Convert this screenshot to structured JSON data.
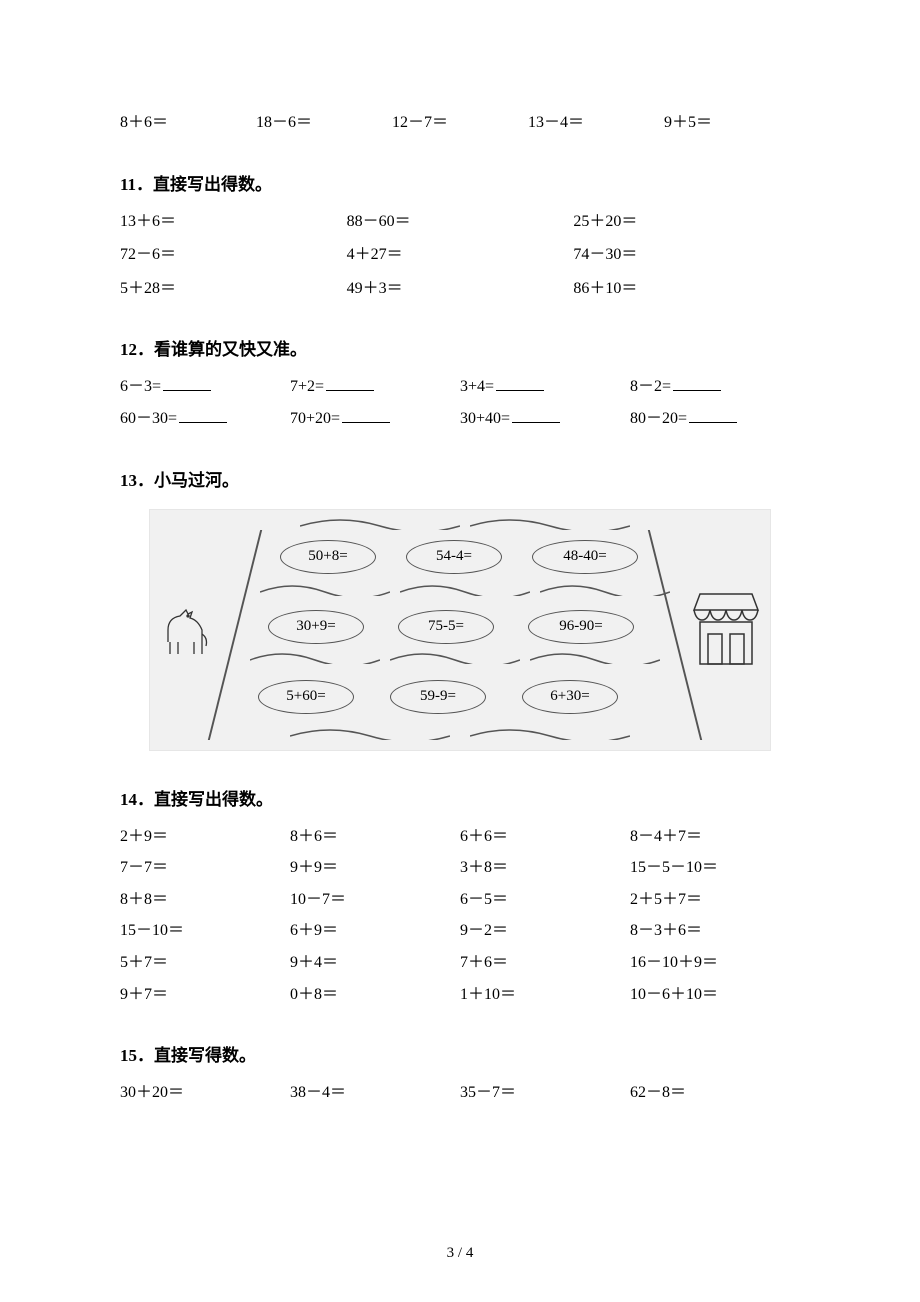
{
  "topRow": {
    "items": [
      "8＋6＝",
      "18－6＝",
      "12－7＝",
      "13－4＝",
      "9＋5＝"
    ]
  },
  "q11": {
    "title": "11．直接写出得数。",
    "rows": [
      [
        "13＋6＝",
        "88－60＝",
        "25＋20＝"
      ],
      [
        "72－6＝",
        "4＋27＝",
        "74－30＝"
      ],
      [
        "5＋28＝",
        "49＋3＝",
        "86＋10＝"
      ]
    ]
  },
  "q12": {
    "title": "12．看谁算的又快又准。",
    "rows": [
      [
        "6－3=",
        "7+2=",
        "3+4=",
        "8－2="
      ],
      [
        "60－30=",
        "70+20=",
        "30+40=",
        "80－20="
      ]
    ]
  },
  "q13": {
    "title": "13．小马过河。",
    "pills": {
      "r1": [
        "50+8=",
        "54-4=",
        "48-40="
      ],
      "r2": [
        "30+9=",
        "75-5=",
        "96-90="
      ],
      "r3": [
        "5+60=",
        "59-9=",
        "6+30="
      ]
    }
  },
  "q14": {
    "title": "14．直接写出得数。",
    "rows": [
      [
        "2＋9＝",
        "8＋6＝",
        "6＋6＝",
        "8－4＋7＝"
      ],
      [
        "7－7＝",
        "9＋9＝",
        "3＋8＝",
        "15－5－10＝"
      ],
      [
        "8＋8＝",
        "10－7＝",
        "6－5＝",
        "2＋5＋7＝"
      ],
      [
        "15－10＝",
        "6＋9＝",
        "9－2＝",
        "8－3＋6＝"
      ],
      [
        "5＋7＝",
        "9＋4＝",
        "7＋6＝",
        "16－10＋9＝"
      ],
      [
        "9＋7＝",
        "0＋8＝",
        "1＋10＝",
        "10－6＋10＝"
      ]
    ]
  },
  "q15": {
    "title": "15．直接写得数。",
    "rows": [
      [
        "30＋20＝",
        "38－4＝",
        "35－7＝",
        "62－8＝"
      ]
    ]
  },
  "pageNumber": "3 / 4",
  "style": {
    "page_bg": "#ffffff",
    "figure_bg": "#f1f1f1",
    "text_color": "#000000",
    "stroke_color": "#555555",
    "body_fontsize": 16,
    "heading_fontsize": 17,
    "pill_fontsize": 15
  }
}
